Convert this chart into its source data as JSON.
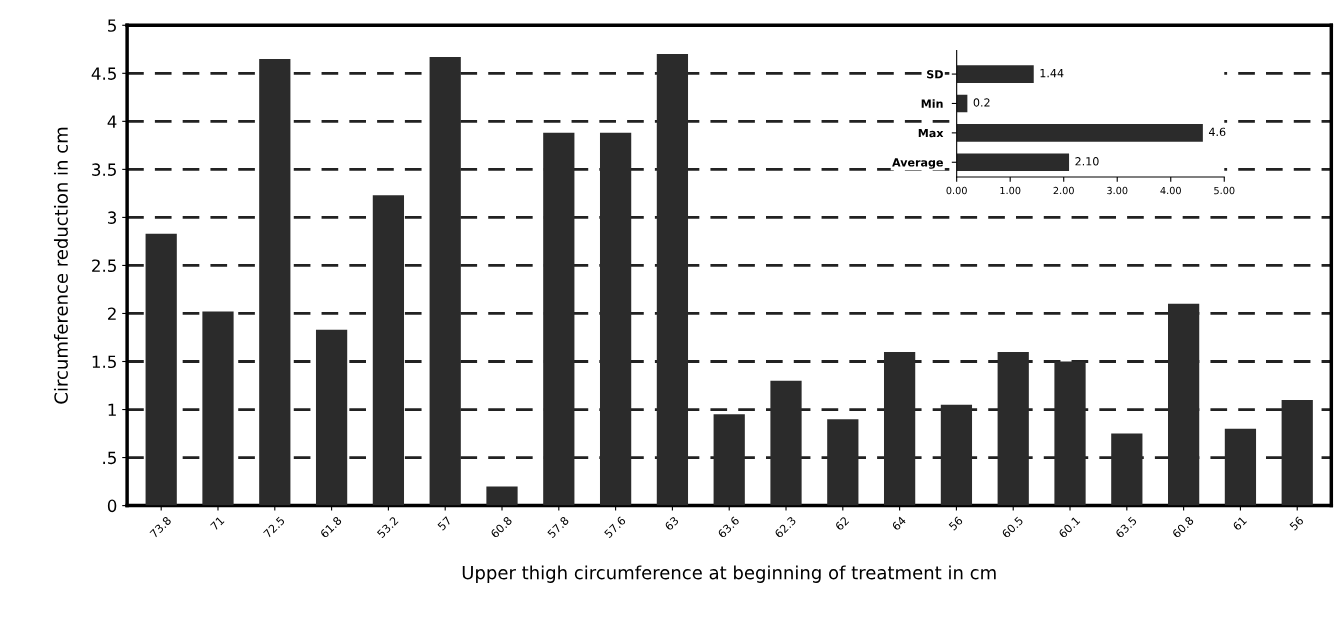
{
  "chart_data": [
    {
      "type": "bar",
      "xlabel": "Upper thigh circumference at beginning of treatment in cm",
      "ylabel": "Circumference reduction in cm",
      "categories": [
        "73.8",
        "71",
        "72.5",
        "61.8",
        "53.2",
        "57",
        "60.8",
        "57.8",
        "57.6",
        "63",
        "63.6",
        "62.3",
        "62",
        "64",
        "56",
        "60.5",
        "60.1",
        "63.5",
        "60.8",
        "61",
        "56"
      ],
      "values": [
        2.83,
        2.02,
        4.65,
        1.83,
        3.23,
        4.67,
        0.2,
        3.88,
        3.88,
        4.7,
        0.95,
        1.3,
        0.9,
        1.6,
        1.05,
        1.6,
        1.5,
        0.75,
        2.1,
        0.8,
        1.1
      ],
      "color": "#2b2b2b",
      "ylim": [
        0,
        5
      ],
      "yticks": [
        0,
        {
          "value": 0.5,
          "label": ".5"
        },
        1,
        1.5,
        2,
        2.5,
        3,
        3.5,
        4,
        4.5,
        5
      ],
      "grid": "y"
    },
    {
      "type": "bar",
      "orientation": "horizontal",
      "categories": [
        "SD",
        "Min",
        "Max",
        "Average"
      ],
      "values": [
        1.44,
        0.2,
        4.6,
        2.1
      ],
      "value_labels": [
        "1.44",
        "0.2",
        "4.6",
        "2.10"
      ],
      "color": "#2b2b2b",
      "xlim": [
        0,
        5
      ],
      "xticks": [
        {
          "value": 0,
          "label": "0.00"
        },
        {
          "value": 1,
          "label": "1.00"
        },
        {
          "value": 2,
          "label": "2.00"
        },
        {
          "value": 3,
          "label": "3.00"
        },
        {
          "value": 4,
          "label": "4.00"
        },
        {
          "value": 5,
          "label": "5.00"
        }
      ]
    }
  ]
}
